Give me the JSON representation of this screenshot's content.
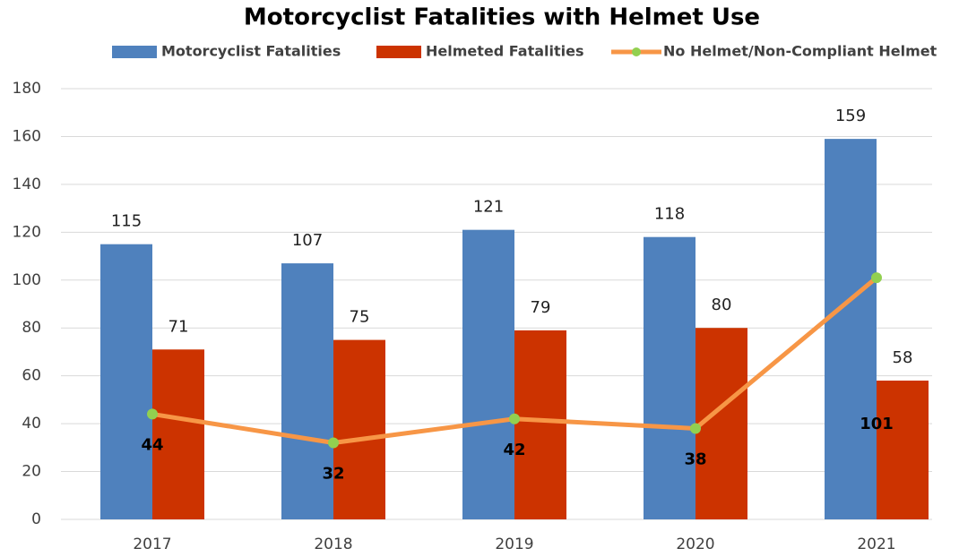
{
  "chart_data": {
    "type": "bar",
    "title": "Motorcyclist Fatalities with Helmet Use",
    "categories": [
      "2017",
      "2018",
      "2019",
      "2020",
      "2021"
    ],
    "series": [
      {
        "name": "Motorcyclist Fatalities",
        "color": "#4f81bd",
        "values": [
          115,
          107,
          121,
          118,
          159
        ]
      },
      {
        "name": "Helmeted Fatalities",
        "color": "#cc3300",
        "values": [
          71,
          75,
          79,
          80,
          58
        ]
      },
      {
        "name": "No Helmet/Non-Compliant Helmet",
        "type": "line",
        "color": "#f79646",
        "marker_color": "#92d050",
        "values": [
          44,
          32,
          42,
          38,
          101
        ]
      }
    ],
    "ylim": [
      0,
      180
    ],
    "yticks": [
      0,
      20,
      40,
      60,
      80,
      100,
      120,
      140,
      160,
      180
    ],
    "grid": true,
    "legend": "top"
  }
}
